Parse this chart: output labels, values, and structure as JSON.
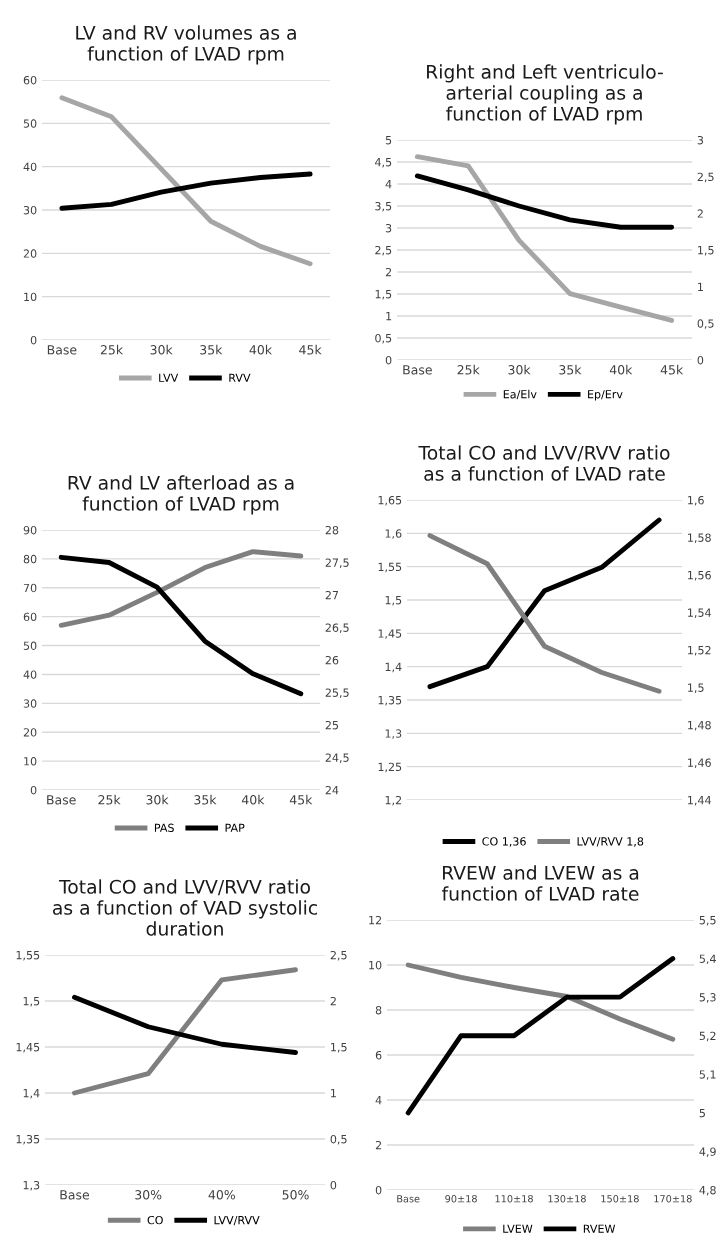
{
  "chart_data": [
    {
      "type": "line",
      "title": "LV and RV volumes as a\nfunction of LVAD rpm",
      "categories": [
        "Base",
        "25k",
        "30k",
        "35k",
        "40k",
        "45k"
      ],
      "series": [
        {
          "name": "LVV",
          "color": "#a6a6a6",
          "values": [
            55.9,
            51.5,
            39.5,
            27.4,
            21.6,
            17.6
          ]
        },
        {
          "name": "RVV",
          "color": "#000000",
          "values": [
            30.4,
            31.3,
            34.1,
            36.2,
            37.5,
            38.3
          ]
        }
      ],
      "ylim": [
        0,
        60
      ],
      "yticks": [
        0,
        10,
        20,
        30,
        40,
        50,
        60
      ],
      "grid": "y",
      "legend": "bottom"
    },
    {
      "type": "line",
      "title": "Right and Left ventriculo-\narterial coupling as a\nfunction of LVAD rpm",
      "categories": [
        "Base",
        "25k",
        "30k",
        "35k",
        "40k",
        "45k"
      ],
      "series": [
        {
          "name": "Ea/Elv",
          "color": "#a6a6a6",
          "values": [
            4.62,
            4.41,
            2.72,
            1.51,
            1.2,
            0.9
          ]
        },
        {
          "name": "Ep/Erv",
          "color": "#000000",
          "axis": "y2",
          "values": [
            2.51,
            2.32,
            2.1,
            1.91,
            1.81,
            1.81
          ]
        }
      ],
      "ylim": [
        0,
        5
      ],
      "yticks": [
        0,
        {
          "value": 0.5,
          "label": "0,5"
        },
        1,
        {
          "value": 1.5,
          "label": "1,5"
        },
        2,
        {
          "value": 2.5,
          "label": "2,5"
        },
        3,
        {
          "value": 3.5,
          "label": "3,5"
        },
        4,
        {
          "value": 4.5,
          "label": "4,5"
        },
        5
      ],
      "y2lim": [
        0,
        3
      ],
      "y2ticks": [
        0,
        {
          "value": 0.5,
          "label": "0,5"
        },
        1,
        {
          "value": 1.5,
          "label": "1,5"
        },
        2,
        {
          "value": 2.5,
          "label": "2,5"
        },
        3
      ],
      "grid": "y",
      "legend": "bottom"
    },
    {
      "type": "line",
      "title": "RV and LV afterload as a\nfunction of LVAD rpm",
      "categories": [
        "Base",
        "25k",
        "30k",
        "35k",
        "40k",
        "45k"
      ],
      "series": [
        {
          "name": "PAS",
          "color": "#7f7f7f",
          "values": [
            57,
            60.5,
            68.4,
            77,
            82.5,
            81
          ]
        },
        {
          "name": "PAP",
          "color": "#000000",
          "axis": "y2",
          "values": [
            27.58,
            27.5,
            27.12,
            26.29,
            25.79,
            25.48
          ]
        }
      ],
      "ylim": [
        0,
        90
      ],
      "yticks": [
        0,
        10,
        20,
        30,
        40,
        50,
        60,
        70,
        80,
        90
      ],
      "y2lim": [
        24,
        28
      ],
      "y2ticks": [
        24,
        {
          "value": 24.5,
          "label": "24,5"
        },
        25,
        {
          "value": 25.5,
          "label": "25,5"
        },
        26,
        {
          "value": 26.5,
          "label": "26,5"
        },
        27,
        {
          "value": 27.5,
          "label": "27,5"
        },
        28
      ],
      "grid": "y",
      "legend": "bottom"
    },
    {
      "type": "line",
      "title": "Total CO and LVV/RVV ratio\nas a function of LVAD rate",
      "categories": [
        null,
        null,
        null,
        null,
        null
      ],
      "series": [
        {
          "name": "CO 1,36",
          "color": "#000000",
          "values": [
            1.37,
            1.4,
            1.514,
            1.549,
            1.62
          ]
        },
        {
          "name": "LVV/RVV 1,8",
          "color": "#7f7f7f",
          "axis": "y2",
          "values": [
            1.581,
            1.566,
            1.522,
            1.508,
            1.498
          ]
        }
      ],
      "ylim": [
        1.2,
        1.65
      ],
      "yticks": [
        {
          "value": 1.2,
          "label": "1,2"
        },
        {
          "value": 1.25,
          "label": "1,25"
        },
        {
          "value": 1.3,
          "label": "1,3"
        },
        {
          "value": 1.35,
          "label": "1,35"
        },
        {
          "value": 1.4,
          "label": "1,4"
        },
        {
          "value": 1.45,
          "label": "1,45"
        },
        {
          "value": 1.5,
          "label": "1,5"
        },
        {
          "value": 1.55,
          "label": "1,55"
        },
        {
          "value": 1.6,
          "label": "1,6"
        },
        {
          "value": 1.65,
          "label": "1,65"
        }
      ],
      "y2lim": [
        1.44,
        1.6
      ],
      "y2ticks": [
        {
          "value": 1.44,
          "label": "1,44"
        },
        {
          "value": 1.46,
          "label": "1,46"
        },
        {
          "value": 1.48,
          "label": "1,48"
        },
        {
          "value": 1.5,
          "label": "1,5"
        },
        {
          "value": 1.52,
          "label": "1,52"
        },
        {
          "value": 1.54,
          "label": "1,54"
        },
        {
          "value": 1.56,
          "label": "1,56"
        },
        {
          "value": 1.58,
          "label": "1,58"
        },
        {
          "value": 1.6,
          "label": "1,6"
        }
      ],
      "grid": "y",
      "legend": "bottom"
    },
    {
      "type": "line",
      "title": "Total CO and LVV/RVV ratio\nas a function of VAD systolic\nduration",
      "categories": [
        "Base",
        "30%",
        "40%",
        "50%"
      ],
      "series": [
        {
          "name": "CO",
          "color": "#7f7f7f",
          "values": [
            1.4,
            1.421,
            1.523,
            1.534
          ]
        },
        {
          "name": "LVV/RVV",
          "color": "#000000",
          "axis": "y2",
          "values": [
            2.04,
            1.72,
            1.53,
            1.44
          ]
        }
      ],
      "ylim": [
        1.3,
        1.55
      ],
      "yticks": [
        {
          "value": 1.3,
          "label": "1,3"
        },
        {
          "value": 1.35,
          "label": "1,35"
        },
        {
          "value": 1.4,
          "label": "1,4"
        },
        {
          "value": 1.45,
          "label": "1,45"
        },
        {
          "value": 1.5,
          "label": "1,5"
        },
        {
          "value": 1.55,
          "label": "1,55"
        }
      ],
      "y2lim": [
        0,
        2.5
      ],
      "y2ticks": [
        0,
        {
          "value": 0.5,
          "label": "0,5"
        },
        1,
        {
          "value": 1.5,
          "label": "1,5"
        },
        2,
        {
          "value": 2.5,
          "label": "2,5"
        }
      ],
      "grid": "y",
      "legend": "bottom"
    },
    {
      "type": "line",
      "title": "RVEW and LVEW as a\nfunction of LVAD rate",
      "categories": [
        "Base",
        "90±18",
        "110±18",
        "130±18",
        "150±18",
        "170±18"
      ],
      "series": [
        {
          "name": "LVEW",
          "color": "#7f7f7f",
          "values": [
            10,
            9.45,
            9.0,
            8.6,
            7.6,
            6.7
          ]
        },
        {
          "name": "RVEW",
          "color": "#000000",
          "axis": "y2",
          "values": [
            5.0,
            5.2,
            5.2,
            5.3,
            5.3,
            5.4
          ]
        }
      ],
      "ylim": [
        0,
        12
      ],
      "yticks": [
        0,
        2,
        4,
        6,
        8,
        10,
        12
      ],
      "y2lim": [
        4.8,
        5.5
      ],
      "y2ticks": [
        {
          "value": 4.8,
          "label": "4,8"
        },
        {
          "value": 4.9,
          "label": "4,9"
        },
        5,
        {
          "value": 5.1,
          "label": "5,1"
        },
        {
          "value": 5.2,
          "label": "5,2"
        },
        {
          "value": 5.3,
          "label": "5,3"
        },
        {
          "value": 5.4,
          "label": "5,4"
        },
        {
          "value": 5.5,
          "label": "5,5"
        }
      ],
      "grid": "y",
      "legend": "bottom"
    }
  ]
}
